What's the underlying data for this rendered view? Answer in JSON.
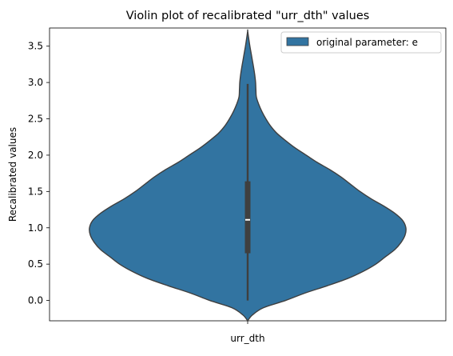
{
  "chart_data": {
    "type": "violin",
    "title": "Violin plot of recalibrated \"urr_dth\" values",
    "xlabel": "",
    "ylabel": "Recalibrated values",
    "categories": [
      "urr_dth"
    ],
    "ylim": [
      -0.28,
      3.75
    ],
    "yticks": [
      "0.0",
      "0.5",
      "1.0",
      "1.5",
      "2.0",
      "2.5",
      "3.0",
      "3.5"
    ],
    "legend": {
      "position": "top-right",
      "entries": [
        "original parameter: e"
      ]
    },
    "series": [
      {
        "name": "original parameter: e",
        "color": "#3274a1",
        "min": 0.0,
        "q1": 0.65,
        "median": 1.11,
        "q3": 1.64,
        "max": 2.98,
        "density_extent": [
          -0.28,
          3.71
        ],
        "density_profile": [
          [
            -0.28,
            0.0
          ],
          [
            -0.2,
            0.03
          ],
          [
            -0.1,
            0.1
          ],
          [
            0.0,
            0.24
          ],
          [
            0.1,
            0.36
          ],
          [
            0.2,
            0.5
          ],
          [
            0.3,
            0.63
          ],
          [
            0.4,
            0.73
          ],
          [
            0.5,
            0.81
          ],
          [
            0.6,
            0.87
          ],
          [
            0.7,
            0.93
          ],
          [
            0.8,
            0.97
          ],
          [
            0.9,
            0.995
          ],
          [
            1.0,
            1.0
          ],
          [
            1.1,
            0.98
          ],
          [
            1.2,
            0.93
          ],
          [
            1.3,
            0.86
          ],
          [
            1.4,
            0.78
          ],
          [
            1.5,
            0.71
          ],
          [
            1.6,
            0.65
          ],
          [
            1.7,
            0.59
          ],
          [
            1.8,
            0.52
          ],
          [
            1.9,
            0.44
          ],
          [
            2.0,
            0.37
          ],
          [
            2.1,
            0.3
          ],
          [
            2.2,
            0.24
          ],
          [
            2.3,
            0.185
          ],
          [
            2.4,
            0.145
          ],
          [
            2.5,
            0.115
          ],
          [
            2.6,
            0.09
          ],
          [
            2.7,
            0.07
          ],
          [
            2.8,
            0.055
          ],
          [
            2.9,
            0.052
          ],
          [
            3.0,
            0.05
          ],
          [
            3.1,
            0.045
          ],
          [
            3.2,
            0.038
          ],
          [
            3.3,
            0.03
          ],
          [
            3.4,
            0.022
          ],
          [
            3.5,
            0.014
          ],
          [
            3.6,
            0.007
          ],
          [
            3.71,
            0.0
          ]
        ]
      }
    ],
    "grid": false
  }
}
